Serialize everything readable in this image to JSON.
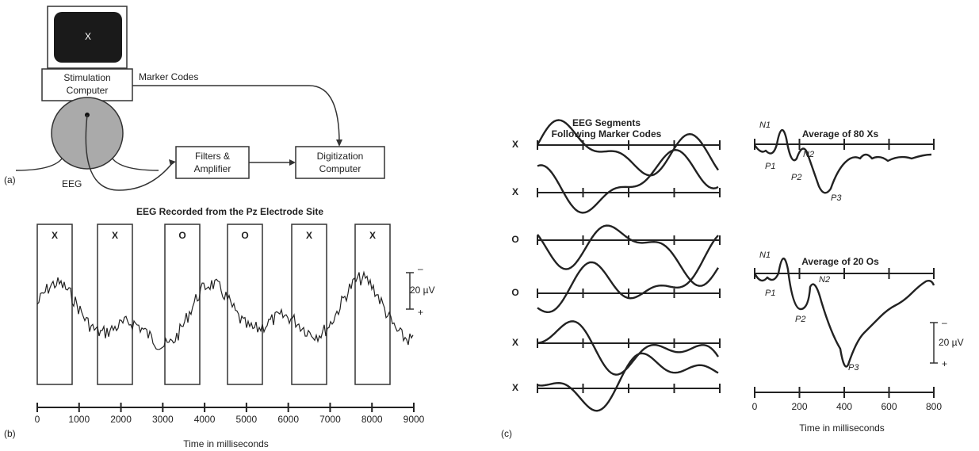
{
  "panel_a": {
    "label": "(a)",
    "screen_letter": "X",
    "stimulation_computer": [
      "Stimulation",
      "Computer"
    ],
    "marker_codes": "Marker Codes",
    "filters": [
      "Filters &",
      "Amplifier"
    ],
    "digitization": [
      "Digitization",
      "Computer"
    ],
    "eeg": "EEG"
  },
  "panel_b": {
    "label": "(b)",
    "title": "EEG Recorded from the Pz Electrode Site",
    "stimuli": [
      "X",
      "X",
      "O",
      "O",
      "X",
      "X"
    ],
    "scale": [
      "–",
      "20 µV",
      "+"
    ],
    "ticks": [
      "0",
      "1000",
      "2000",
      "3000",
      "4000",
      "5000",
      "6000",
      "7000",
      "8000",
      "9000"
    ],
    "axis_label": "Time in milliseconds"
  },
  "panel_c": {
    "label": "(c)",
    "title": [
      "EEG Segments",
      "Following Marker Codes"
    ],
    "rows": [
      "X",
      "X",
      "O",
      "O",
      "X",
      "X"
    ],
    "avg_x_title": "Average of 80 Xs",
    "avg_o_title": "Average of 20 Os",
    "peaks": [
      "N1",
      "P1",
      "P2",
      "N2",
      "P3"
    ],
    "scale": [
      "–",
      "20 µV",
      "+"
    ],
    "ticks": [
      "0",
      "200",
      "400",
      "600",
      "800"
    ],
    "axis_label": "Time in milliseconds"
  }
}
